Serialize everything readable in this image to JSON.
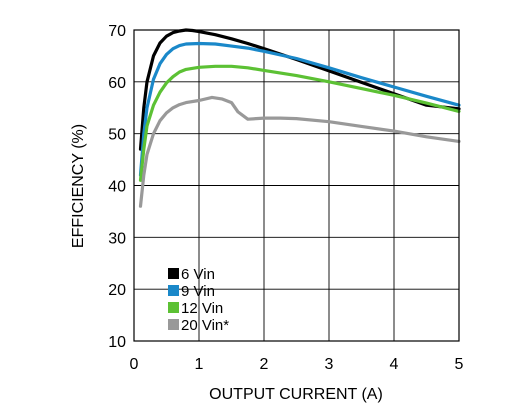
{
  "chart_data": {
    "type": "line",
    "title": "",
    "xlabel": "OUTPUT CURRENT (A)",
    "ylabel": "EFFICIENCY (%)",
    "xlim": [
      0,
      5
    ],
    "ylim": [
      10,
      70
    ],
    "xticks": [
      0,
      1,
      2,
      3,
      4,
      5
    ],
    "yticks": [
      10,
      20,
      30,
      40,
      50,
      60,
      70
    ],
    "grid": true,
    "legend_position": "bottom-left",
    "series": [
      {
        "name": "6 Vin",
        "color": "#000000",
        "points": [
          [
            0.1,
            47
          ],
          [
            0.15,
            55
          ],
          [
            0.2,
            60
          ],
          [
            0.3,
            65
          ],
          [
            0.4,
            67.5
          ],
          [
            0.5,
            68.8
          ],
          [
            0.6,
            69.5
          ],
          [
            0.7,
            69.8
          ],
          [
            0.8,
            70
          ],
          [
            0.9,
            69.9
          ],
          [
            1.0,
            69.7
          ],
          [
            1.25,
            69.1
          ],
          [
            1.5,
            68.3
          ],
          [
            1.75,
            67.4
          ],
          [
            2.0,
            66.4
          ],
          [
            2.5,
            64.3
          ],
          [
            3.0,
            62.1
          ],
          [
            3.5,
            59.9
          ],
          [
            4.0,
            57.7
          ],
          [
            4.5,
            55.5
          ],
          [
            5.0,
            54.8
          ]
        ]
      },
      {
        "name": "9 Vin",
        "color": "#1a88c9",
        "points": [
          [
            0.1,
            42
          ],
          [
            0.15,
            50
          ],
          [
            0.2,
            55
          ],
          [
            0.3,
            60.5
          ],
          [
            0.4,
            63.5
          ],
          [
            0.5,
            65.3
          ],
          [
            0.6,
            66.4
          ],
          [
            0.7,
            67
          ],
          [
            0.8,
            67.3
          ],
          [
            1.0,
            67.4
          ],
          [
            1.25,
            67.3
          ],
          [
            1.5,
            66.9
          ],
          [
            1.75,
            66.5
          ],
          [
            2.0,
            65.9
          ],
          [
            2.5,
            64.5
          ],
          [
            3.0,
            62.7
          ],
          [
            3.5,
            60.8
          ],
          [
            4.0,
            59
          ],
          [
            4.5,
            57.2
          ],
          [
            5.0,
            55.5
          ]
        ]
      },
      {
        "name": "12 Vin",
        "color": "#5cc134",
        "points": [
          [
            0.1,
            41
          ],
          [
            0.15,
            47
          ],
          [
            0.2,
            51.5
          ],
          [
            0.3,
            55.5
          ],
          [
            0.4,
            58
          ],
          [
            0.5,
            59.8
          ],
          [
            0.6,
            61
          ],
          [
            0.7,
            61.9
          ],
          [
            0.8,
            62.4
          ],
          [
            1.0,
            62.8
          ],
          [
            1.25,
            63
          ],
          [
            1.5,
            63
          ],
          [
            1.75,
            62.7
          ],
          [
            2.0,
            62.2
          ],
          [
            2.5,
            61.2
          ],
          [
            3.0,
            60
          ],
          [
            3.5,
            58.7
          ],
          [
            4.0,
            57.4
          ],
          [
            4.5,
            55.9
          ],
          [
            5.0,
            54.3
          ]
        ]
      },
      {
        "name": "20 Vin*",
        "color": "#999999",
        "points": [
          [
            0.1,
            36
          ],
          [
            0.15,
            42
          ],
          [
            0.2,
            46
          ],
          [
            0.3,
            50
          ],
          [
            0.4,
            52.5
          ],
          [
            0.5,
            54
          ],
          [
            0.6,
            55
          ],
          [
            0.7,
            55.6
          ],
          [
            0.8,
            56
          ],
          [
            1.0,
            56.4
          ],
          [
            1.2,
            57
          ],
          [
            1.35,
            56.7
          ],
          [
            1.5,
            56
          ],
          [
            1.6,
            54.2
          ],
          [
            1.75,
            52.8
          ],
          [
            2.0,
            53
          ],
          [
            2.25,
            53
          ],
          [
            2.5,
            52.9
          ],
          [
            3.0,
            52.3
          ],
          [
            3.5,
            51.4
          ],
          [
            4.0,
            50.5
          ],
          [
            4.5,
            49.4
          ],
          [
            5.0,
            48.5
          ]
        ]
      }
    ]
  }
}
